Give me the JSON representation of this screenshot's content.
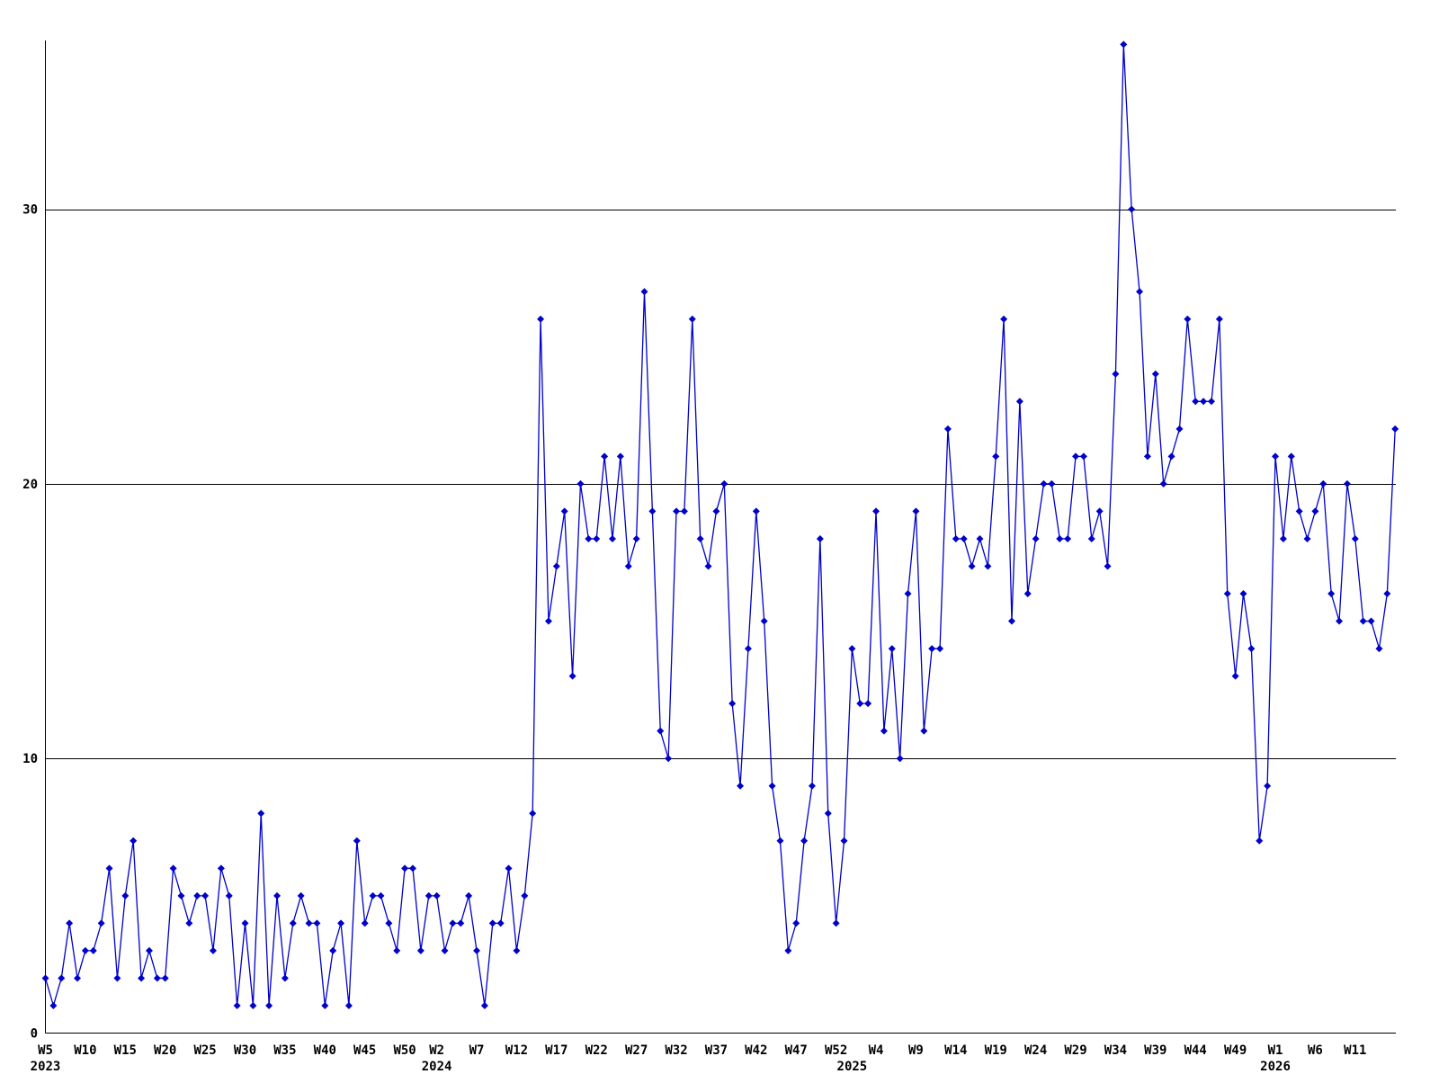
{
  "chart_data": {
    "type": "line",
    "title": "",
    "x_unit": "week",
    "start_week": "2023-W5",
    "end_week": "2026-W16",
    "line_color": "#0000cc",
    "axis_color": "#000000",
    "background": "#ffffff",
    "grid": "horizontal",
    "y_ticks": [
      0,
      10,
      20,
      30
    ],
    "ylim": [
      0,
      37
    ],
    "values": [
      2,
      1,
      2,
      4,
      2,
      3,
      3,
      4,
      6,
      2,
      5,
      7,
      2,
      3,
      2,
      2,
      6,
      5,
      4,
      5,
      5,
      3,
      6,
      5,
      1,
      4,
      1,
      8,
      1,
      5,
      2,
      4,
      5,
      4,
      4,
      1,
      3,
      4,
      1,
      7,
      4,
      5,
      5,
      4,
      3,
      6,
      6,
      3,
      5,
      5,
      3,
      4,
      4,
      5,
      3,
      1,
      4,
      4,
      6,
      3,
      5,
      8,
      26,
      15,
      17,
      19,
      13,
      20,
      18,
      18,
      21,
      18,
      21,
      17,
      18,
      27,
      19,
      11,
      10,
      19,
      19,
      26,
      18,
      17,
      19,
      20,
      12,
      9,
      14,
      19,
      15,
      9,
      7,
      3,
      4,
      7,
      9,
      18,
      8,
      4,
      7,
      14,
      12,
      12,
      19,
      11,
      14,
      10,
      16,
      19,
      11,
      14,
      14,
      22,
      18,
      18,
      17,
      18,
      17,
      21,
      26,
      15,
      23,
      16,
      18,
      20,
      20,
      18,
      18,
      21,
      21,
      18,
      19,
      17,
      24,
      36,
      30,
      27,
      21,
      24,
      20,
      21,
      22,
      26,
      23,
      23,
      23,
      26,
      16,
      13,
      16,
      14,
      7,
      9,
      21,
      18,
      21,
      19,
      18,
      19,
      20,
      16,
      15,
      20,
      18,
      15,
      15,
      14,
      16,
      22
    ],
    "x_tick_labels": [
      {
        "i": 0,
        "label": "W5"
      },
      {
        "i": 5,
        "label": "W10"
      },
      {
        "i": 10,
        "label": "W15"
      },
      {
        "i": 15,
        "label": "W20"
      },
      {
        "i": 20,
        "label": "W25"
      },
      {
        "i": 25,
        "label": "W30"
      },
      {
        "i": 30,
        "label": "W35"
      },
      {
        "i": 35,
        "label": "W40"
      },
      {
        "i": 40,
        "label": "W45"
      },
      {
        "i": 45,
        "label": "W50"
      },
      {
        "i": 49,
        "label": "W2"
      },
      {
        "i": 54,
        "label": "W7"
      },
      {
        "i": 59,
        "label": "W12"
      },
      {
        "i": 64,
        "label": "W17"
      },
      {
        "i": 69,
        "label": "W22"
      },
      {
        "i": 74,
        "label": "W27"
      },
      {
        "i": 79,
        "label": "W32"
      },
      {
        "i": 84,
        "label": "W37"
      },
      {
        "i": 89,
        "label": "W42"
      },
      {
        "i": 94,
        "label": "W47"
      },
      {
        "i": 99,
        "label": "W52"
      },
      {
        "i": 104,
        "label": "W4"
      },
      {
        "i": 109,
        "label": "W9"
      },
      {
        "i": 114,
        "label": "W14"
      },
      {
        "i": 119,
        "label": "W19"
      },
      {
        "i": 124,
        "label": "W24"
      },
      {
        "i": 129,
        "label": "W29"
      },
      {
        "i": 134,
        "label": "W34"
      },
      {
        "i": 139,
        "label": "W39"
      },
      {
        "i": 144,
        "label": "W44"
      },
      {
        "i": 149,
        "label": "W49"
      },
      {
        "i": 154,
        "label": "W1"
      },
      {
        "i": 159,
        "label": "W6"
      },
      {
        "i": 164,
        "label": "W11"
      }
    ],
    "year_labels": [
      {
        "i": 0,
        "label": "2023"
      },
      {
        "i": 49,
        "label": "2024"
      },
      {
        "i": 101,
        "label": "2025"
      },
      {
        "i": 154,
        "label": "2026"
      }
    ]
  }
}
